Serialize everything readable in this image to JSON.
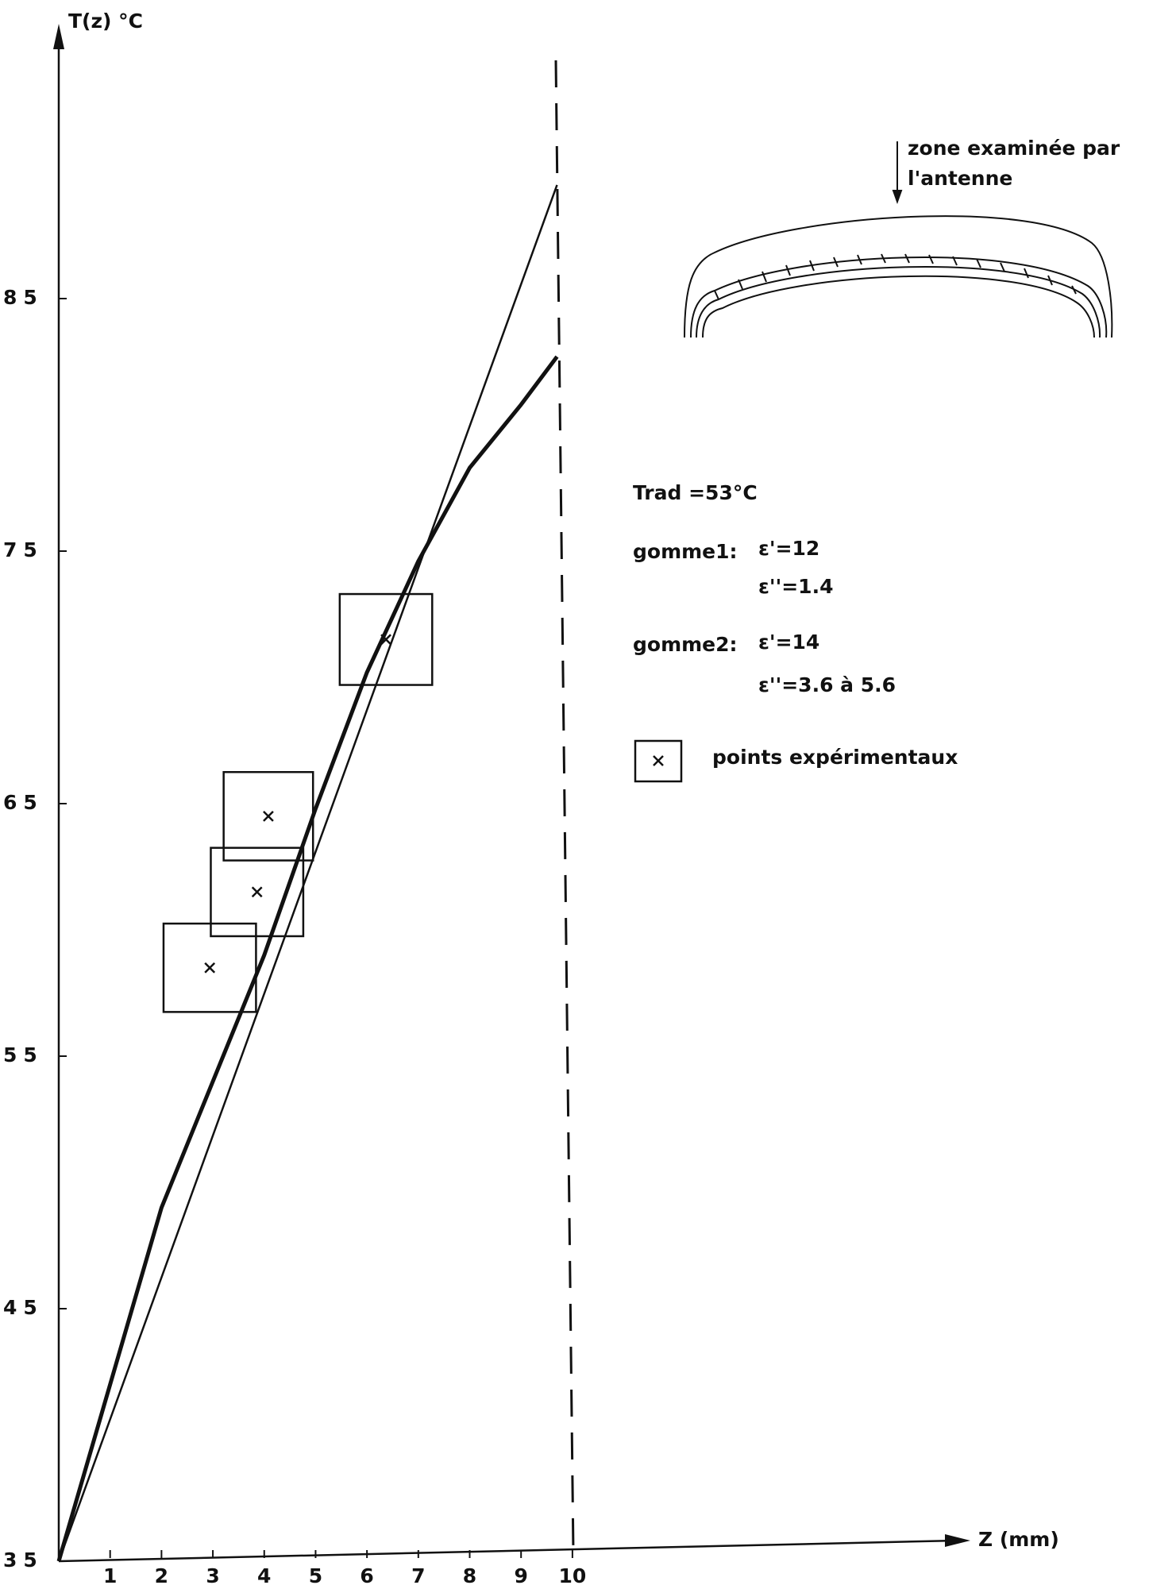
{
  "chart_data": {
    "type": "line",
    "y_label": "T(z)  °C",
    "x_label": "Z (mm)",
    "xlim": [
      0,
      17.7
    ],
    "ylim": [
      35,
      95
    ],
    "xticks": [
      1,
      2,
      3,
      4,
      5,
      6,
      7,
      8,
      9,
      10
    ],
    "yticks": [
      35,
      45,
      55,
      65,
      75,
      85
    ],
    "grid": false,
    "series": [
      {
        "x": [
          0,
          9.7
        ],
        "values": [
          35,
          89.5
        ],
        "color": "#111111",
        "width": 2.5
      },
      {
        "x": [
          0,
          1,
          2,
          3,
          4,
          5,
          6,
          7,
          8,
          9,
          9.7
        ],
        "values": [
          35,
          42,
          49,
          54,
          59,
          64.8,
          70.2,
          74.6,
          78.3,
          80.8,
          82.7
        ],
        "color": "#111111",
        "width": 5
      }
    ],
    "points": {
      "name": "points expérimentaux",
      "color": "#111111",
      "x": [
        2.94,
        3.86,
        4.08,
        6.37
      ],
      "values": [
        58.5,
        61.5,
        64.5,
        71.5
      ],
      "x_error": [
        0.9,
        0.9,
        0.87,
        0.9
      ],
      "y_error": [
        1.75,
        1.75,
        1.75,
        1.8
      ]
    },
    "annotations": {
      "zone": "zone  examinée par",
      "zone2": "l'antenne",
      "trad": "Trad =53°C",
      "gomme1": "gomme1:",
      "g1e1": "ε'=12",
      "g1e2": "ε''=1.4",
      "gomme2": "gomme2:",
      "g2e1": "ε'=14",
      "g2e2": "ε''=3.6  à  5.6"
    }
  }
}
